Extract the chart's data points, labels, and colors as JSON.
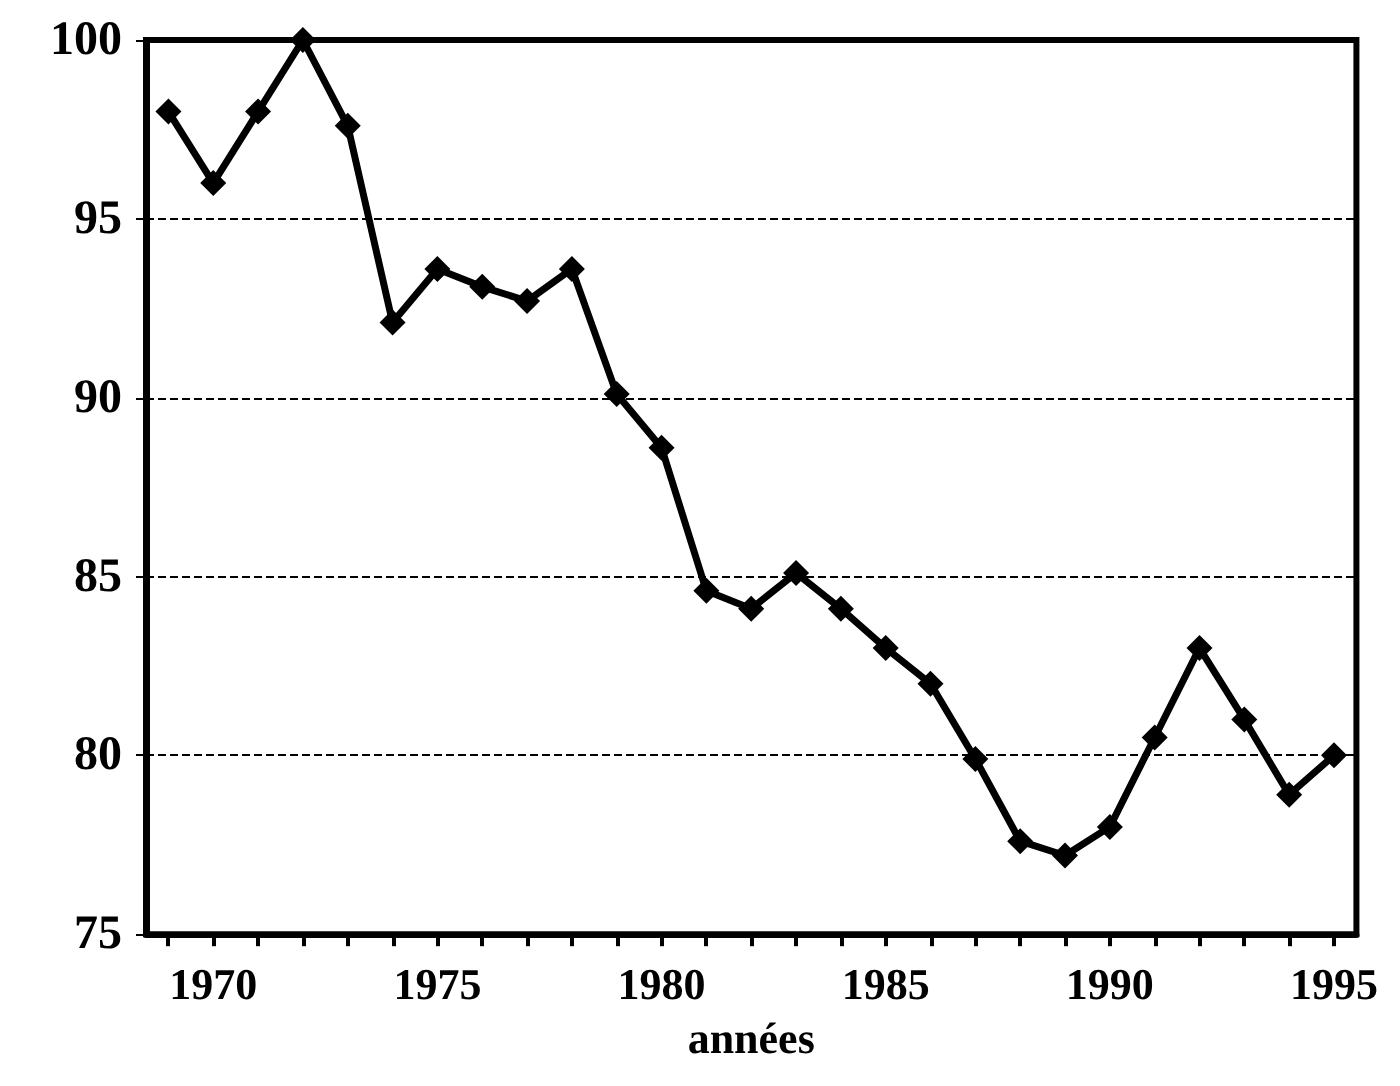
{
  "chart_data": {
    "type": "line",
    "xlabel": "années",
    "x": [
      1969,
      1970,
      1971,
      1972,
      1973,
      1974,
      1975,
      1976,
      1977,
      1978,
      1979,
      1980,
      1981,
      1982,
      1983,
      1984,
      1985,
      1986,
      1987,
      1988,
      1989,
      1990,
      1991,
      1992,
      1993,
      1994,
      1995
    ],
    "series": [
      {
        "color": "#000000",
        "values": [
          98,
          96,
          98,
          100,
          97.6,
          92.1,
          93.6,
          93.1,
          92.7,
          93.6,
          90.1,
          88.6,
          84.6,
          84.1,
          85.1,
          84.1,
          83,
          82,
          79.9,
          77.6,
          77.2,
          78,
          80.5,
          83,
          81,
          78.9,
          80
        ]
      }
    ],
    "xlim": [
      1968.5,
      1995.5
    ],
    "xticks": [
      {
        "value": 1969,
        "label": null
      },
      1970,
      {
        "value": 1971,
        "label": null
      },
      {
        "value": 1972,
        "label": null
      },
      {
        "value": 1973,
        "label": null
      },
      {
        "value": 1974,
        "label": null
      },
      1975,
      {
        "value": 1976,
        "label": null
      },
      {
        "value": 1977,
        "label": null
      },
      {
        "value": 1978,
        "label": null
      },
      {
        "value": 1979,
        "label": null
      },
      1980,
      {
        "value": 1981,
        "label": null
      },
      {
        "value": 1982,
        "label": null
      },
      {
        "value": 1983,
        "label": null
      },
      {
        "value": 1984,
        "label": null
      },
      1985,
      {
        "value": 1986,
        "label": null
      },
      {
        "value": 1987,
        "label": null
      },
      {
        "value": 1988,
        "label": null
      },
      {
        "value": 1989,
        "label": null
      },
      1990,
      {
        "value": 1991,
        "label": null
      },
      {
        "value": 1992,
        "label": null
      },
      {
        "value": 1993,
        "label": null
      },
      {
        "value": 1994,
        "label": null
      },
      1995
    ],
    "ylim": [
      75,
      100
    ],
    "yticks": [
      75,
      80,
      85,
      90,
      95,
      100
    ],
    "grid": "y",
    "marker": "diamond",
    "line_style": "solid"
  }
}
